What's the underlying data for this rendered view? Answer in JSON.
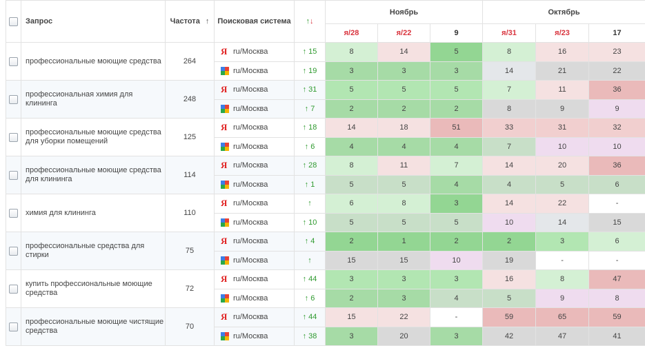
{
  "header": {
    "query": "Запрос",
    "frequency": "Частота",
    "frequency_sort": "↑",
    "engine": "Поисковая система",
    "change_up": "↑",
    "change_down": "↓",
    "months": [
      "Ноябрь",
      "Октябрь"
    ],
    "dates": [
      {
        "label": "я/28",
        "type": "yandex"
      },
      {
        "label": "я/22",
        "type": "yandex"
      },
      {
        "label": "9",
        "type": "plain"
      },
      {
        "label": "я/31",
        "type": "yandex"
      },
      {
        "label": "я/23",
        "type": "yandex"
      },
      {
        "label": "17",
        "type": "plain"
      }
    ]
  },
  "colors": {
    "g3": "#93d693",
    "g2": "#b2e6b2",
    "g1": "#d4f0d4",
    "gs": "#a6dba6",
    "dg": "#c8dfc8",
    "r1": "#f5e1e1",
    "r2": "#f1cfcf",
    "r3": "#eababa",
    "gr": "#d9d9d9",
    "lg": "#e4e7ea",
    "pu": "#efdcef",
    "wh": "#ffffff"
  },
  "groups": [
    {
      "query": "профессиональные моющие средства",
      "frequency": "264",
      "rows": [
        {
          "engine": "yandex",
          "region": "ru/Москва",
          "change": "↑ 15",
          "cells": [
            [
              "8",
              "g1"
            ],
            [
              "14",
              "r1"
            ],
            [
              "5",
              "g3"
            ],
            [
              "8",
              "g1"
            ],
            [
              "16",
              "r1"
            ],
            [
              "23",
              "r1"
            ]
          ]
        },
        {
          "engine": "google",
          "region": "ru/Москва",
          "change": "↑ 19",
          "cells": [
            [
              "3",
              "gs"
            ],
            [
              "3",
              "gs"
            ],
            [
              "3",
              "gs"
            ],
            [
              "14",
              "lg"
            ],
            [
              "21",
              "gr"
            ],
            [
              "22",
              "gr"
            ]
          ]
        }
      ]
    },
    {
      "query": "профессиональная химия для клининга",
      "frequency": "248",
      "rows": [
        {
          "engine": "yandex",
          "region": "ru/Москва",
          "change": "↑ 31",
          "cells": [
            [
              "5",
              "g2"
            ],
            [
              "5",
              "g2"
            ],
            [
              "5",
              "g2"
            ],
            [
              "7",
              "g1"
            ],
            [
              "11",
              "r1"
            ],
            [
              "36",
              "r3"
            ]
          ]
        },
        {
          "engine": "google",
          "region": "ru/Москва",
          "change": "↑ 7",
          "cells": [
            [
              "2",
              "gs"
            ],
            [
              "2",
              "gs"
            ],
            [
              "2",
              "gs"
            ],
            [
              "8",
              "gr"
            ],
            [
              "9",
              "gr"
            ],
            [
              "9",
              "pu"
            ]
          ]
        }
      ]
    },
    {
      "query": "профессиональные моющие средства для уборки помещений",
      "frequency": "125",
      "rows": [
        {
          "engine": "yandex",
          "region": "ru/Москва",
          "change": "↑ 18",
          "cells": [
            [
              "14",
              "r1"
            ],
            [
              "18",
              "r1"
            ],
            [
              "51",
              "r3"
            ],
            [
              "33",
              "r2"
            ],
            [
              "31",
              "r2"
            ],
            [
              "32",
              "r2"
            ]
          ]
        },
        {
          "engine": "google",
          "region": "ru/Москва",
          "change": "↑ 6",
          "cells": [
            [
              "4",
              "gs"
            ],
            [
              "4",
              "gs"
            ],
            [
              "4",
              "gs"
            ],
            [
              "7",
              "dg"
            ],
            [
              "10",
              "pu"
            ],
            [
              "10",
              "pu"
            ]
          ]
        }
      ]
    },
    {
      "query": "профессиональные моющие средства для клининга",
      "frequency": "114",
      "rows": [
        {
          "engine": "yandex",
          "region": "ru/Москва",
          "change": "↑ 28",
          "cells": [
            [
              "8",
              "g1"
            ],
            [
              "11",
              "r1"
            ],
            [
              "7",
              "g1"
            ],
            [
              "14",
              "r1"
            ],
            [
              "20",
              "r1"
            ],
            [
              "36",
              "r3"
            ]
          ]
        },
        {
          "engine": "google",
          "region": "ru/Москва",
          "change": "↑ 1",
          "cells": [
            [
              "5",
              "dg"
            ],
            [
              "5",
              "dg"
            ],
            [
              "4",
              "gs"
            ],
            [
              "4",
              "dg"
            ],
            [
              "5",
              "dg"
            ],
            [
              "6",
              "dg"
            ]
          ]
        }
      ]
    },
    {
      "query": "химия для клининга",
      "frequency": "110",
      "rows": [
        {
          "engine": "yandex",
          "region": "ru/Москва",
          "change": "↑",
          "cells": [
            [
              "6",
              "g1"
            ],
            [
              "8",
              "g1"
            ],
            [
              "3",
              "g3"
            ],
            [
              "14",
              "r1"
            ],
            [
              "22",
              "r1"
            ],
            [
              "-",
              "wh"
            ]
          ]
        },
        {
          "engine": "google",
          "region": "ru/Москва",
          "change": "↑ 10",
          "cells": [
            [
              "5",
              "dg"
            ],
            [
              "5",
              "dg"
            ],
            [
              "5",
              "dg"
            ],
            [
              "10",
              "pu"
            ],
            [
              "14",
              "lg"
            ],
            [
              "15",
              "gr"
            ]
          ]
        }
      ]
    },
    {
      "query": "профессиональные средства для стирки",
      "frequency": "75",
      "rows": [
        {
          "engine": "yandex",
          "region": "ru/Москва",
          "change": "↑ 4",
          "cells": [
            [
              "2",
              "g3"
            ],
            [
              "1",
              "g3"
            ],
            [
              "2",
              "g3"
            ],
            [
              "2",
              "g3"
            ],
            [
              "3",
              "g2"
            ],
            [
              "6",
              "g1"
            ]
          ]
        },
        {
          "engine": "google",
          "region": "ru/Москва",
          "change": "↑",
          "cells": [
            [
              "15",
              "gr"
            ],
            [
              "15",
              "gr"
            ],
            [
              "10",
              "pu"
            ],
            [
              "19",
              "gr"
            ],
            [
              "-",
              "wh"
            ],
            [
              "-",
              "wh"
            ]
          ]
        }
      ]
    },
    {
      "query": "купить профессиональные моющие средства",
      "frequency": "72",
      "rows": [
        {
          "engine": "yandex",
          "region": "ru/Москва",
          "change": "↑ 44",
          "cells": [
            [
              "3",
              "g2"
            ],
            [
              "3",
              "g2"
            ],
            [
              "3",
              "g2"
            ],
            [
              "16",
              "r1"
            ],
            [
              "8",
              "g1"
            ],
            [
              "47",
              "r3"
            ]
          ]
        },
        {
          "engine": "google",
          "region": "ru/Москва",
          "change": "↑ 6",
          "cells": [
            [
              "2",
              "gs"
            ],
            [
              "3",
              "gs"
            ],
            [
              "4",
              "dg"
            ],
            [
              "5",
              "dg"
            ],
            [
              "9",
              "pu"
            ],
            [
              "8",
              "pu"
            ]
          ]
        }
      ]
    },
    {
      "query": "профессиональные моющие чистящие средства",
      "frequency": "70",
      "rows": [
        {
          "engine": "yandex",
          "region": "ru/Москва",
          "change": "↑ 44",
          "cells": [
            [
              "15",
              "r1"
            ],
            [
              "22",
              "r1"
            ],
            [
              "-",
              "wh"
            ],
            [
              "59",
              "r3"
            ],
            [
              "65",
              "r3"
            ],
            [
              "59",
              "r3"
            ]
          ]
        },
        {
          "engine": "google",
          "region": "ru/Москва",
          "change": "↑ 38",
          "cells": [
            [
              "3",
              "gs"
            ],
            [
              "20",
              "gr"
            ],
            [
              "3",
              "gs"
            ],
            [
              "42",
              "gr"
            ],
            [
              "47",
              "gr"
            ],
            [
              "41",
              "gr"
            ]
          ]
        }
      ]
    }
  ]
}
